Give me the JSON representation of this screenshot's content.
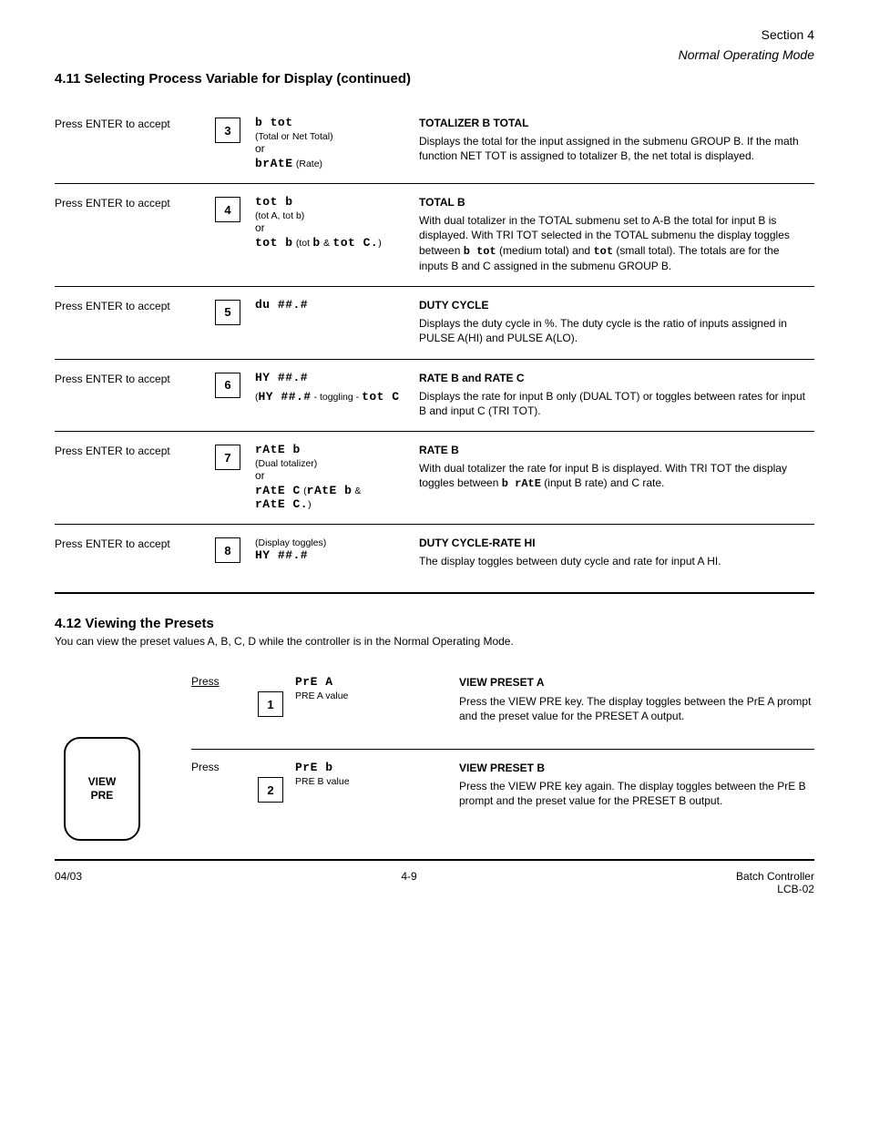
{
  "header": {
    "section_ref": "Section 4",
    "section_title": "Normal Operating Mode"
  },
  "section_heading": "4.11 Selecting Process Variable for Display (continued)",
  "rows": [
    {
      "step": "Press ENTER to accept",
      "box": "3",
      "display_html": "<span class='segfont'>b&nbsp;tot</span><div class='disp-sub'>(Total or Net Total)</div><div class='disp-line'>or</div><span class='segfont'>brAtE</span> <span class='disp-sub'>(Rate)</span>",
      "desc_title": "TOTALIZER B TOTAL",
      "desc_body": "Displays the total for the input assigned in the submenu GROUP B. If the math function NET TOT is assigned to totalizer B, the net total is displayed."
    },
    {
      "step": "Press ENTER to accept",
      "box": "4",
      "display_html": "<span class='segfont'>tot&nbsp;b</span><div class='disp-sub'>(tot A, tot b)</div><div class='disp-line'>or</div><span class='segfont'>tot&nbsp;b</span> <span class='disp-sub'>(tot</span> <span class='segfont'>b</span> <span class='disp-sub'>&amp;</span> <span class='segfont'>tot&nbsp;C.</span><span class='disp-sub'>)</span>",
      "desc_html": "<div class='desc-title'><b>TOTAL B</b></div>With dual totalizer in the TOTAL submenu set to A-B the total for input B is displayed. With TRI TOT selected in the TOTAL submenu the display toggles between <span class='inline-seg'>b&nbsp;tot</span> (medium total) and <span class='inline-seg'>tot</span> (small total). The totals are for the inputs B and C assigned in the submenu GROUP B."
    },
    {
      "step": "Press ENTER to accept",
      "box": "5",
      "display_html": "<span class='segfont'>du&nbsp;##.#</span>",
      "desc_title": "DUTY CYCLE",
      "desc_body": "Displays the duty cycle in %. The duty cycle is the ratio of inputs assigned in PULSE A(HI) and PULSE A(LO)."
    },
    {
      "step": "Press ENTER to accept",
      "box": "6",
      "display_html": "<span class='segfont'>HY&nbsp;##.#</span><div class='disp-sub' style='margin-top:6px;'>(<span class='segfont'>HY ##.#</span> - toggling - <span class='segfont'>tot&nbsp;C</span></div>",
      "desc_title": "RATE B and RATE C",
      "desc_body": "Displays the rate for input B only (DUAL TOT) or toggles between rates for input B and input C (TRI TOT)."
    },
    {
      "step": "Press ENTER to accept",
      "box": "7",
      "display_html": "<span class='segfont'>rAtE&nbsp;b</span><div class='disp-sub'>(Dual totalizer)</div><div class='disp-line'>or</div><span class='segfont'>rAtE&nbsp;C</span> <span class='disp-sub'>(<span class='segfont'>rAtE&nbsp;b</span> &amp; <span class='segfont'>rAtE&nbsp;C.</span>)</span>",
      "desc_html": "<div class='desc-title'><b>RATE B</b></div>With dual totalizer the rate for input B is displayed. With TRI TOT the display toggles between <span class='inline-seg'>b&nbsp;rAtE</span> (input B rate) and C rate."
    },
    {
      "step": "Press ENTER to accept",
      "box": "8",
      "display_html": "<div class='disp-sub'>(Display toggles)</div><span class='segfont'>HY&nbsp;##.#</span>",
      "desc_title": "DUTY CYCLE-RATE HI",
      "desc_body": "The display toggles between duty cycle and rate for input A HI."
    }
  ],
  "preset": {
    "title": "4.12 Viewing the Presets",
    "subtitle": "You can view the preset values A, B, C, D while the controller is in the Normal Operating Mode.",
    "button_label": "VIEW\nPRE",
    "rows": [
      {
        "step_label": "Press",
        "step_under": true,
        "box": "1",
        "display_html": "<span class='segfont'>PrE&nbsp;A</span><div class='disp-sub'>PRE A value</div>",
        "desc_title": "VIEW PRESET A",
        "desc_body": "Press the VIEW PRE key. The display toggles between the PrE A prompt and the preset value for the PRESET A output."
      },
      {
        "step_label": "Press",
        "step_under": false,
        "box": "2",
        "display_html": "<span class='segfont'>PrE&nbsp;b</span><div class='disp-sub'>PRE B value</div>",
        "desc_title": "VIEW PRESET B",
        "desc_body": "Press the VIEW PRE key again. The display toggles between the PrE B prompt and the preset value for the PRESET B output."
      }
    ]
  },
  "footer": {
    "left": "04/03",
    "center": "4-9",
    "right_line1": "Batch Controller",
    "right_line2": "LCB-02"
  }
}
